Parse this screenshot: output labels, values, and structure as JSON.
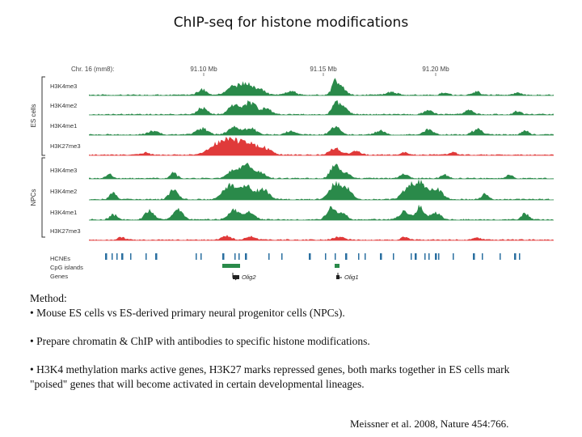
{
  "title": "ChIP-seq for histone modifications",
  "figure": {
    "coord_label": "Chr. 16 (mm8):",
    "coords": [
      "91.10 Mb",
      "91.15 Mb",
      "91.20 Mb"
    ],
    "group_es": "ES cells",
    "group_npc": "NPCs",
    "tracks": [
      {
        "label": "H3K4me3",
        "group": "es",
        "color": "#2a8a4a"
      },
      {
        "label": "H3K4me2",
        "group": "es",
        "color": "#2a8a4a"
      },
      {
        "label": "H3K4me1",
        "group": "es",
        "color": "#2a8a4a"
      },
      {
        "label": "H3K27me3",
        "group": "es",
        "color": "#e03a3a"
      },
      {
        "label": "H3K4me3",
        "group": "npc",
        "color": "#2a8a4a"
      },
      {
        "label": "H3K4me2",
        "group": "npc",
        "color": "#2a8a4a"
      },
      {
        "label": "H3K4me1",
        "group": "npc",
        "color": "#2a8a4a"
      },
      {
        "label": "H3K27me3",
        "group": "npc",
        "color": "#e03a3a"
      }
    ],
    "annotation_labels": [
      "HCNEs",
      "CpG islands",
      "Genes"
    ],
    "genes": [
      "Olig2",
      "Olig1"
    ],
    "colors": {
      "hcne": "#2a6fa0",
      "cpg": "#2a8a4a",
      "gene": "#222222"
    }
  },
  "method": {
    "heading": "Method:",
    "bullet1": "• Mouse ES cells vs ES-derived primary neural progenitor cells (NPCs).",
    "bullet2": "• Prepare chromatin & ChIP with antibodies to specific histone modifications.",
    "bullet3": "• H3K4 methylation marks active genes, H3K27 marks repressed genes, both marks together in ES cells mark \"poised\" genes that will become activated in certain developmental lineages."
  },
  "citation": "Meissner et al. 2008, Nature 454:766."
}
